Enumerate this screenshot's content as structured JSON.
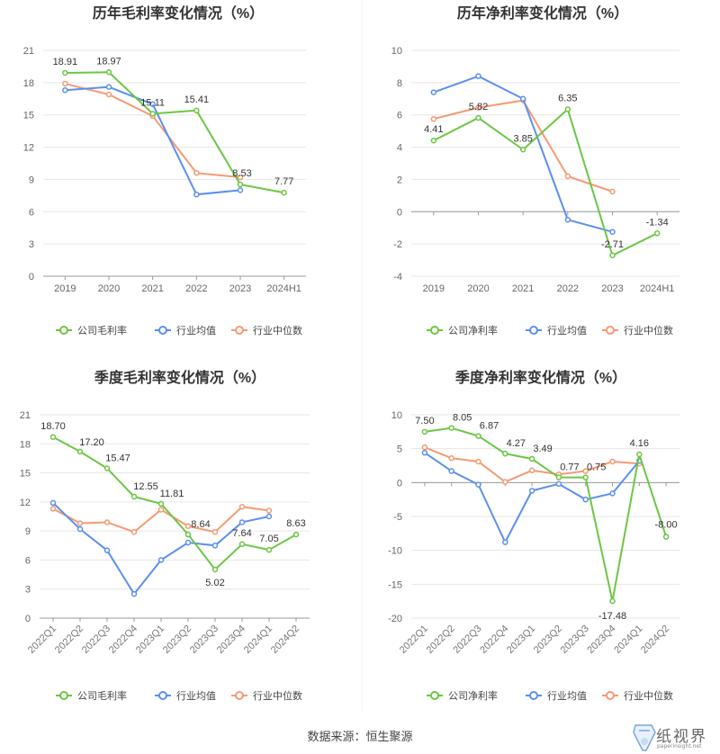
{
  "footer": {
    "source": "数据来源：恒生聚源"
  },
  "logo": {
    "text": "纸视界",
    "url": "paperinsight.net"
  },
  "colors": {
    "company": "#6cc644",
    "industry_avg": "#5b8ff0",
    "industry_median": "#f59a73"
  },
  "chart_data": [
    {
      "type": "line",
      "title": "历年毛利率变化情况（%）",
      "categories": [
        "2019",
        "2020",
        "2021",
        "2022",
        "2023",
        "2024H1"
      ],
      "ylim": [
        0,
        21
      ],
      "yticks": [
        0,
        3,
        6,
        9,
        12,
        15,
        18,
        21
      ],
      "grid": true,
      "legend_position": "bottom",
      "series": [
        {
          "name": "公司毛利率",
          "color": "#6cc644",
          "values": [
            18.91,
            18.97,
            15.11,
            15.41,
            8.53,
            7.77
          ],
          "labels": [
            "18.91",
            "18.97",
            "15.11",
            "15.41",
            "8.53",
            "7.77"
          ]
        },
        {
          "name": "行业均值",
          "color": "#5b8ff0",
          "values": [
            17.3,
            17.6,
            16.0,
            7.6,
            8.0,
            null
          ]
        },
        {
          "name": "行业中位数",
          "color": "#f59a73",
          "values": [
            17.9,
            16.9,
            14.9,
            9.6,
            9.2,
            null
          ]
        }
      ]
    },
    {
      "type": "line",
      "title": "历年净利率变化情况（%）",
      "categories": [
        "2019",
        "2020",
        "2021",
        "2022",
        "2023",
        "2024H1"
      ],
      "ylim": [
        -4,
        10
      ],
      "yticks": [
        -4,
        -2,
        0,
        2,
        4,
        6,
        8,
        10
      ],
      "grid": true,
      "legend_position": "bottom",
      "series": [
        {
          "name": "公司净利率",
          "color": "#6cc644",
          "values": [
            4.41,
            5.82,
            3.85,
            6.35,
            -2.71,
            -1.34
          ],
          "labels": [
            "4.41",
            "5.82",
            "3.85",
            "6.35",
            "-2.71",
            "-1.34"
          ]
        },
        {
          "name": "行业均值",
          "color": "#5b8ff0",
          "values": [
            7.4,
            8.4,
            7.0,
            -0.5,
            -1.25,
            null
          ]
        },
        {
          "name": "行业中位数",
          "color": "#f59a73",
          "values": [
            5.75,
            6.45,
            6.9,
            2.2,
            1.25,
            null
          ]
        }
      ]
    },
    {
      "type": "line",
      "title": "季度毛利率变化情况（%）",
      "categories": [
        "2022Q1",
        "2022Q2",
        "2022Q3",
        "2022Q4",
        "2023Q1",
        "2023Q2",
        "2023Q3",
        "2023Q4",
        "2024Q1",
        "2024Q2"
      ],
      "ylim": [
        0,
        21
      ],
      "yticks": [
        0,
        3,
        6,
        9,
        12,
        15,
        18,
        21
      ],
      "grid": true,
      "legend_position": "bottom",
      "series": [
        {
          "name": "公司毛利率",
          "color": "#6cc644",
          "values": [
            18.7,
            17.2,
            15.47,
            12.55,
            11.81,
            8.64,
            5.02,
            7.64,
            7.05,
            8.63
          ],
          "labels": [
            "18.70",
            "17.20",
            "15.47",
            "12.55",
            "11.81",
            "8.64",
            "5.02",
            "7.64",
            "7.05",
            "8.63"
          ]
        },
        {
          "name": "行业均值",
          "color": "#5b8ff0",
          "values": [
            11.9,
            9.2,
            7.0,
            2.5,
            6.0,
            7.8,
            7.5,
            9.9,
            10.5,
            null
          ]
        },
        {
          "name": "行业中位数",
          "color": "#f59a73",
          "values": [
            11.3,
            9.8,
            9.9,
            8.9,
            11.2,
            9.5,
            8.9,
            11.5,
            11.1,
            null
          ]
        }
      ]
    },
    {
      "type": "line",
      "title": "季度净利率变化情况（%）",
      "categories": [
        "2022Q1",
        "2022Q2",
        "2022Q3",
        "2022Q4",
        "2023Q1",
        "2023Q2",
        "2023Q3",
        "2023Q4",
        "2024Q1",
        "2024Q2"
      ],
      "ylim": [
        -20,
        10
      ],
      "yticks": [
        -20,
        -15,
        -10,
        -5,
        0,
        5,
        10
      ],
      "grid": true,
      "legend_position": "bottom",
      "series": [
        {
          "name": "公司净利率",
          "color": "#6cc644",
          "values": [
            7.5,
            8.05,
            6.87,
            4.27,
            3.49,
            0.77,
            0.75,
            -17.48,
            4.16,
            -8.0
          ],
          "labels": [
            "7.50",
            "8.05",
            "6.87",
            "4.27",
            "3.49",
            "0.77",
            "0.75",
            "-17.48",
            "4.16",
            "-8.00"
          ]
        },
        {
          "name": "行业均值",
          "color": "#5b8ff0",
          "values": [
            4.4,
            1.7,
            -0.3,
            -8.8,
            -1.2,
            -0.2,
            -2.5,
            -1.6,
            3.2,
            null
          ]
        },
        {
          "name": "行业中位数",
          "color": "#f59a73",
          "values": [
            5.2,
            3.6,
            3.1,
            0.1,
            1.8,
            1.2,
            1.7,
            3.1,
            2.8,
            null
          ]
        }
      ]
    }
  ]
}
